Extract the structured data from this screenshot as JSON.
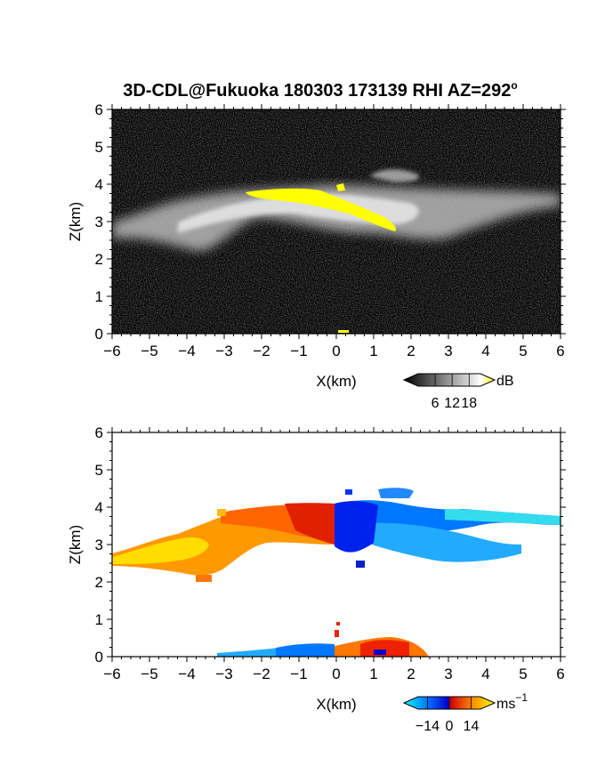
{
  "figure": {
    "title": "3D-CDL@Fukuoka 180303 173139 RHI AZ=292",
    "title_superscript": "o"
  },
  "chart_data": [
    {
      "type": "heatmap",
      "panel": "reflectivity",
      "xlabel": "X(km)",
      "ylabel": "Z(km)",
      "xlim": [
        -6,
        6
      ],
      "ylim": [
        0,
        6
      ],
      "xticks": [
        "−6",
        "−5",
        "−4",
        "−3",
        "−2",
        "−1",
        "0",
        "1",
        "2",
        "3",
        "4",
        "5",
        "6"
      ],
      "yticks": [
        "0",
        "1",
        "2",
        "3",
        "4",
        "5",
        "6"
      ],
      "colorbar": {
        "unit": "dB",
        "ticks": [
          "6",
          "12",
          "18"
        ],
        "range": [
          0,
          22
        ],
        "colors": [
          "#000000",
          "#ffffff",
          "#ffff00"
        ]
      },
      "features": [
        {
          "name": "cloud layer",
          "x_range": [
            -6,
            6
          ],
          "z_range": [
            2.0,
            4.4
          ],
          "level_db": 12
        },
        {
          "name": "bright band",
          "x_range": [
            -2.8,
            1.6
          ],
          "z_range": [
            2.9,
            3.9
          ],
          "level_db": 20
        },
        {
          "name": "ground clutter",
          "x_range": [
            -0.2,
            0.3
          ],
          "z_range": [
            0,
            0.15
          ],
          "level_db": 8
        }
      ]
    },
    {
      "type": "heatmap",
      "panel": "doppler velocity",
      "xlabel": "X(km)",
      "ylabel": "Z(km)",
      "xlim": [
        -6,
        6
      ],
      "ylim": [
        0,
        6
      ],
      "xticks": [
        "−6",
        "−5",
        "−4",
        "−3",
        "−2",
        "−1",
        "0",
        "1",
        "2",
        "3",
        "4",
        "5",
        "6"
      ],
      "yticks": [
        "0",
        "1",
        "2",
        "3",
        "4",
        "5",
        "6"
      ],
      "colorbar": {
        "unit": "ms",
        "unit_superscript": "−1",
        "ticks": [
          "−14",
          "0",
          "14"
        ],
        "range": [
          -20,
          20
        ],
        "colors": [
          "#00ffff",
          "#0066ff",
          "#0000cc",
          "#cc0000",
          "#ff8800",
          "#ffff00"
        ]
      },
      "features": [
        {
          "name": "approaching echo",
          "x_range": [
            -6,
            -0.05
          ],
          "z_range": [
            2.2,
            4.0
          ],
          "velocity": 12
        },
        {
          "name": "receding echo",
          "x_range": [
            0,
            6
          ],
          "z_range": [
            2.4,
            4.5
          ],
          "velocity": -12
        },
        {
          "name": "low-level echo",
          "x_range": [
            -3.2,
            2.5
          ],
          "z_range": [
            0,
            0.9
          ],
          "velocity": 2
        }
      ]
    }
  ]
}
